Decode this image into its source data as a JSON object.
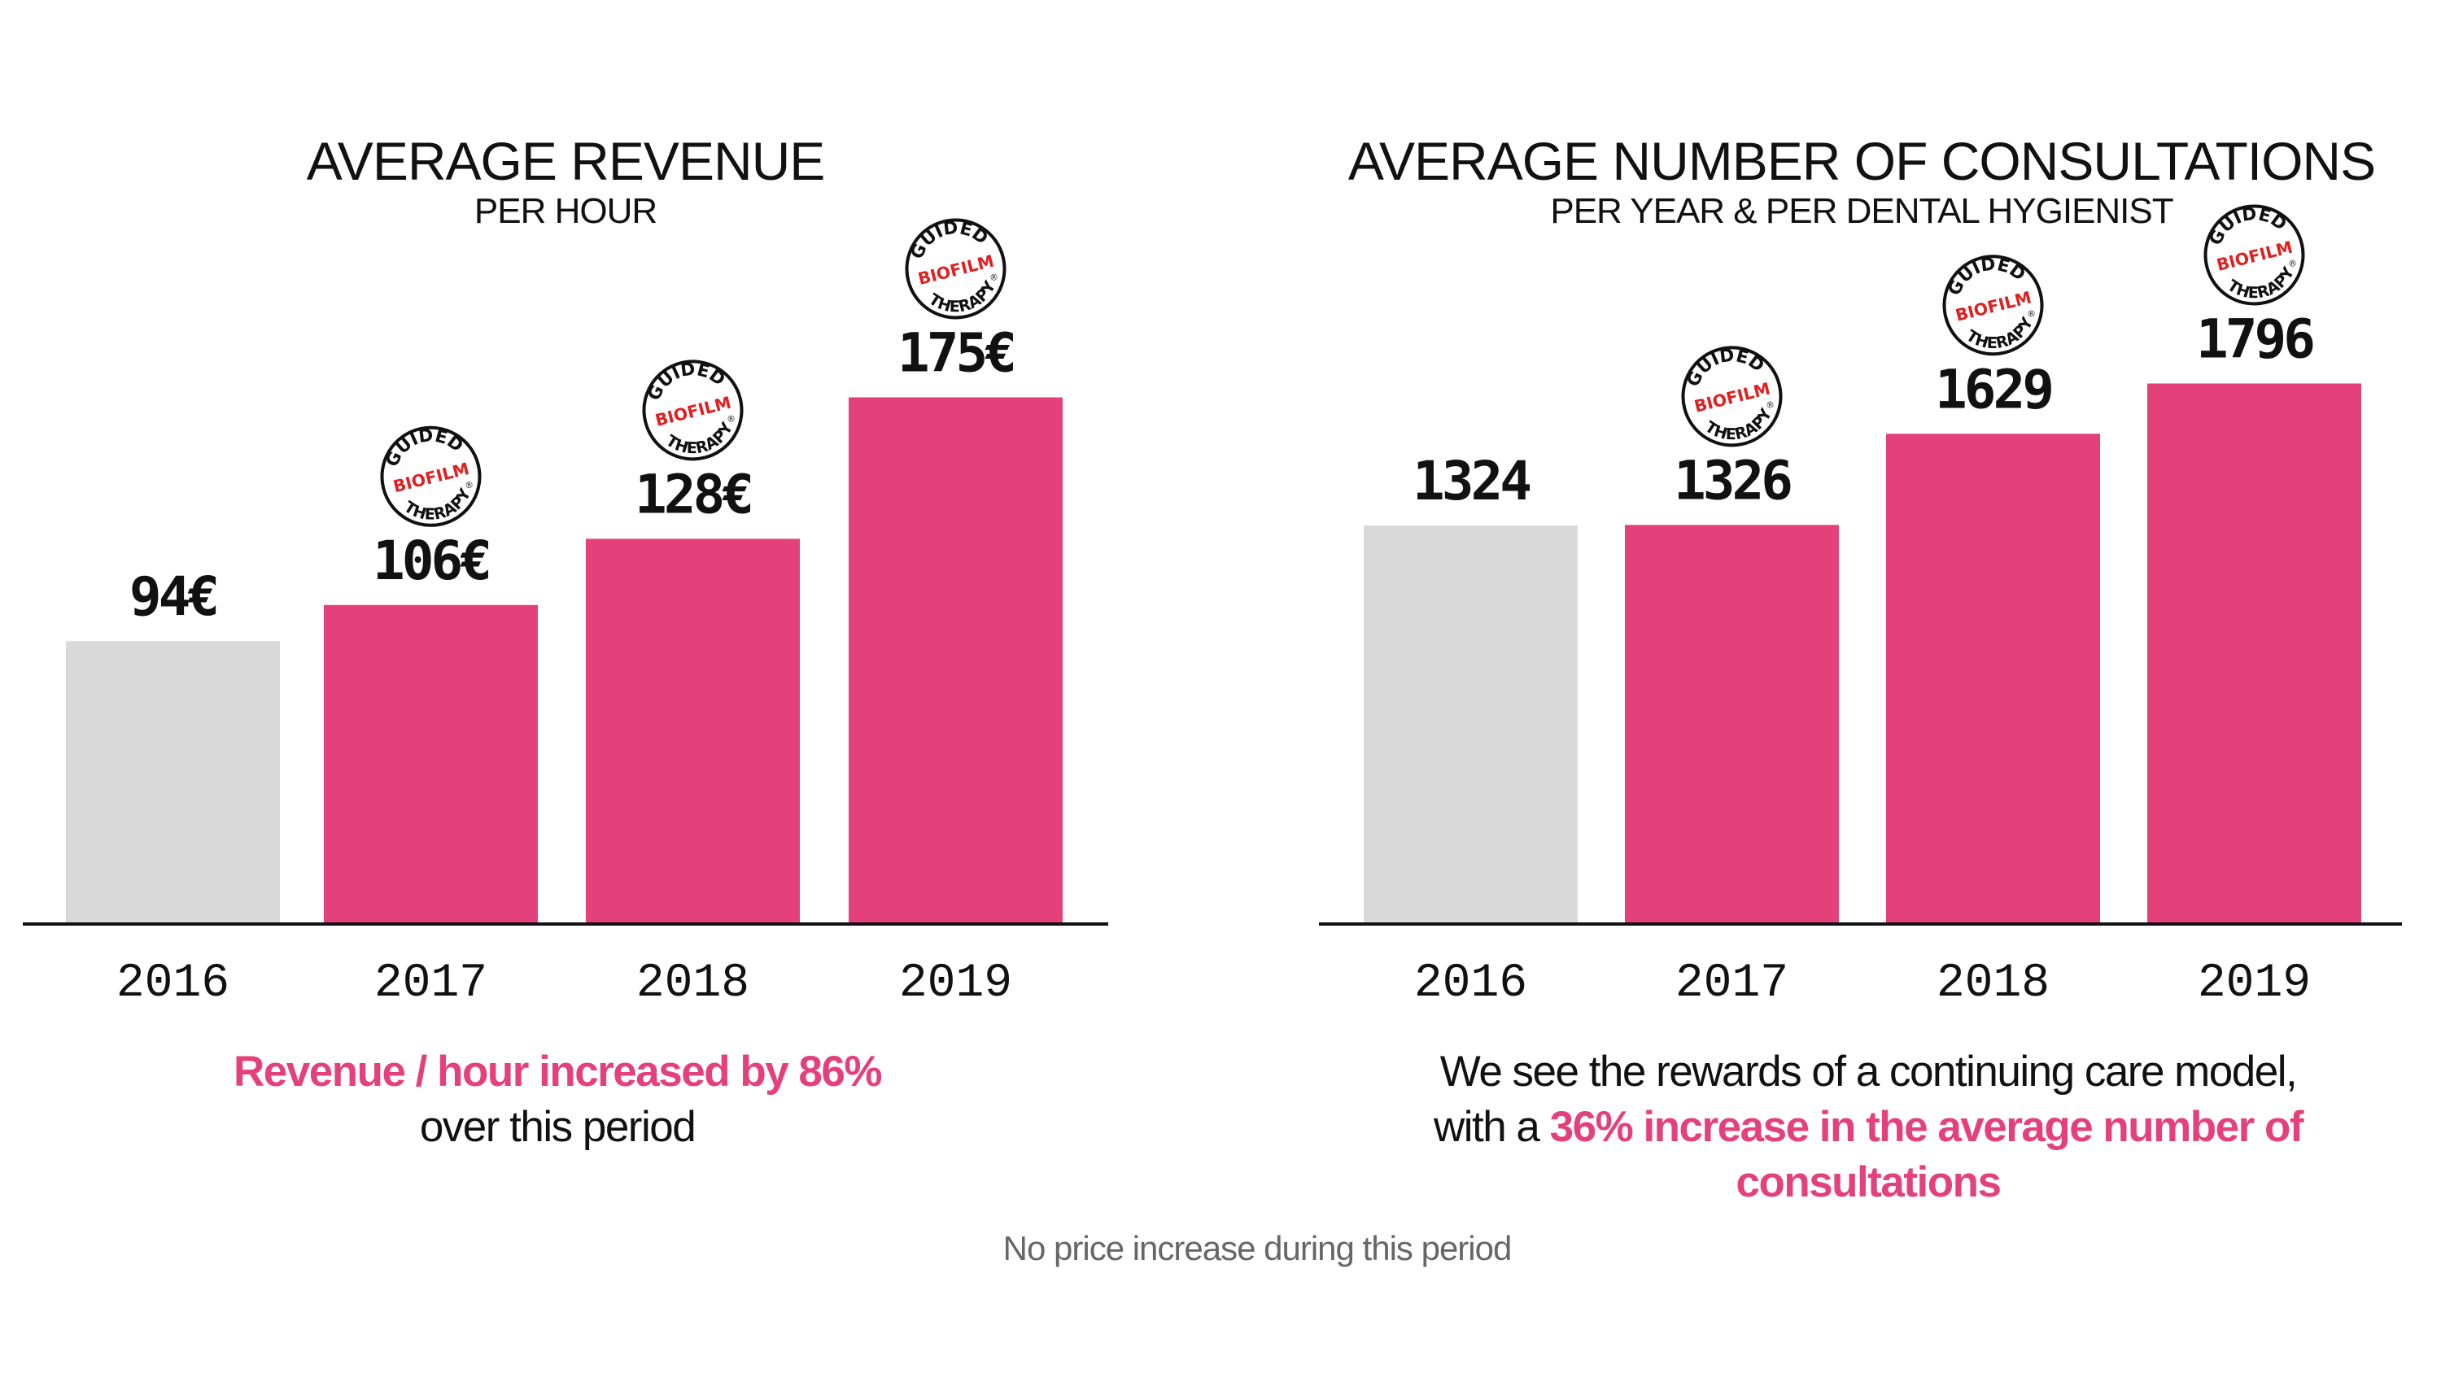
{
  "colors": {
    "accent": "#E4417A",
    "baseline_bar": "#D9D9D9",
    "axis": "#111111",
    "badge_red": "#E02020",
    "text": "#111111",
    "footnote": "#666666"
  },
  "badge": {
    "line1": "GUIDED",
    "line2": "BIOFILM",
    "line3": "THERAPY",
    "mark": "®"
  },
  "chart_data": [
    {
      "type": "bar",
      "title": "AVERAGE REVENUE",
      "subtitle": "PER HOUR",
      "categories": [
        "2016",
        "2017",
        "2018",
        "2019"
      ],
      "values": [
        94,
        106,
        128,
        175
      ],
      "value_labels": [
        "94€",
        "106€",
        "128€",
        "175€"
      ],
      "unit": "€",
      "highlighted": [
        false,
        true,
        true,
        true
      ],
      "badge": [
        false,
        true,
        true,
        true
      ],
      "xlabel": "",
      "ylabel": "",
      "ylim": [
        0,
        200
      ],
      "grid": false,
      "legend": "none"
    },
    {
      "type": "bar",
      "title": "AVERAGE NUMBER OF CONSULTATIONS",
      "subtitle": "PER YEAR & PER DENTAL HYGIENIST",
      "categories": [
        "2016",
        "2017",
        "2018",
        "2019"
      ],
      "values": [
        1324,
        1326,
        1629,
        1796
      ],
      "value_labels": [
        "1324",
        "1326",
        "1629",
        "1796"
      ],
      "unit": "",
      "highlighted": [
        false,
        true,
        true,
        true
      ],
      "badge": [
        false,
        true,
        true,
        true
      ],
      "xlabel": "",
      "ylabel": "",
      "ylim": [
        0,
        2000
      ],
      "grid": false,
      "legend": "none"
    }
  ],
  "captions": {
    "left": {
      "accent": "Revenue / hour increased by 86%",
      "rest": "over this period"
    },
    "right": {
      "line1": "We see the rewards of a continuing care model,",
      "line2_prefix": "with a ",
      "line2_accent": "36% increase in the average number of",
      "line3_accent": "consultations"
    }
  },
  "footnote": "No price increase during this period"
}
